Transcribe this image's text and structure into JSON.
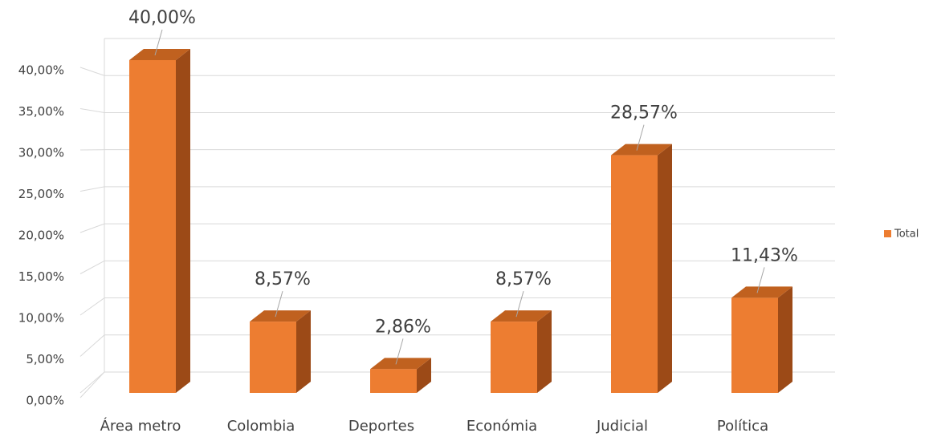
{
  "chart_data": {
    "type": "bar3d",
    "categories": [
      "Área metro",
      "Colombia",
      "Deportes",
      "Económia",
      "Judicial",
      "Política"
    ],
    "series": [
      {
        "name": "Total",
        "color": "#ed7d31",
        "values": [
          40,
          8.57,
          2.86,
          8.57,
          28.57,
          11.43
        ],
        "value_labels": [
          "40,00%",
          "8,57%",
          "2,86%",
          "8,57%",
          "28,57%",
          "11,43%"
        ]
      }
    ],
    "ylim": [
      0,
      45
    ],
    "yticks": [
      {
        "value": 0,
        "label": "0,00%"
      },
      {
        "value": 5,
        "label": "5,00%"
      },
      {
        "value": 10,
        "label": "10,00%"
      },
      {
        "value": 15,
        "label": "15,00%"
      },
      {
        "value": 20,
        "label": "20,00%"
      },
      {
        "value": 25,
        "label": "25,00%"
      },
      {
        "value": 30,
        "label": "30,00%"
      },
      {
        "value": 35,
        "label": "35,00%"
      },
      {
        "value": 40,
        "label": "40,00%"
      }
    ],
    "grid": true,
    "legend": "right"
  }
}
